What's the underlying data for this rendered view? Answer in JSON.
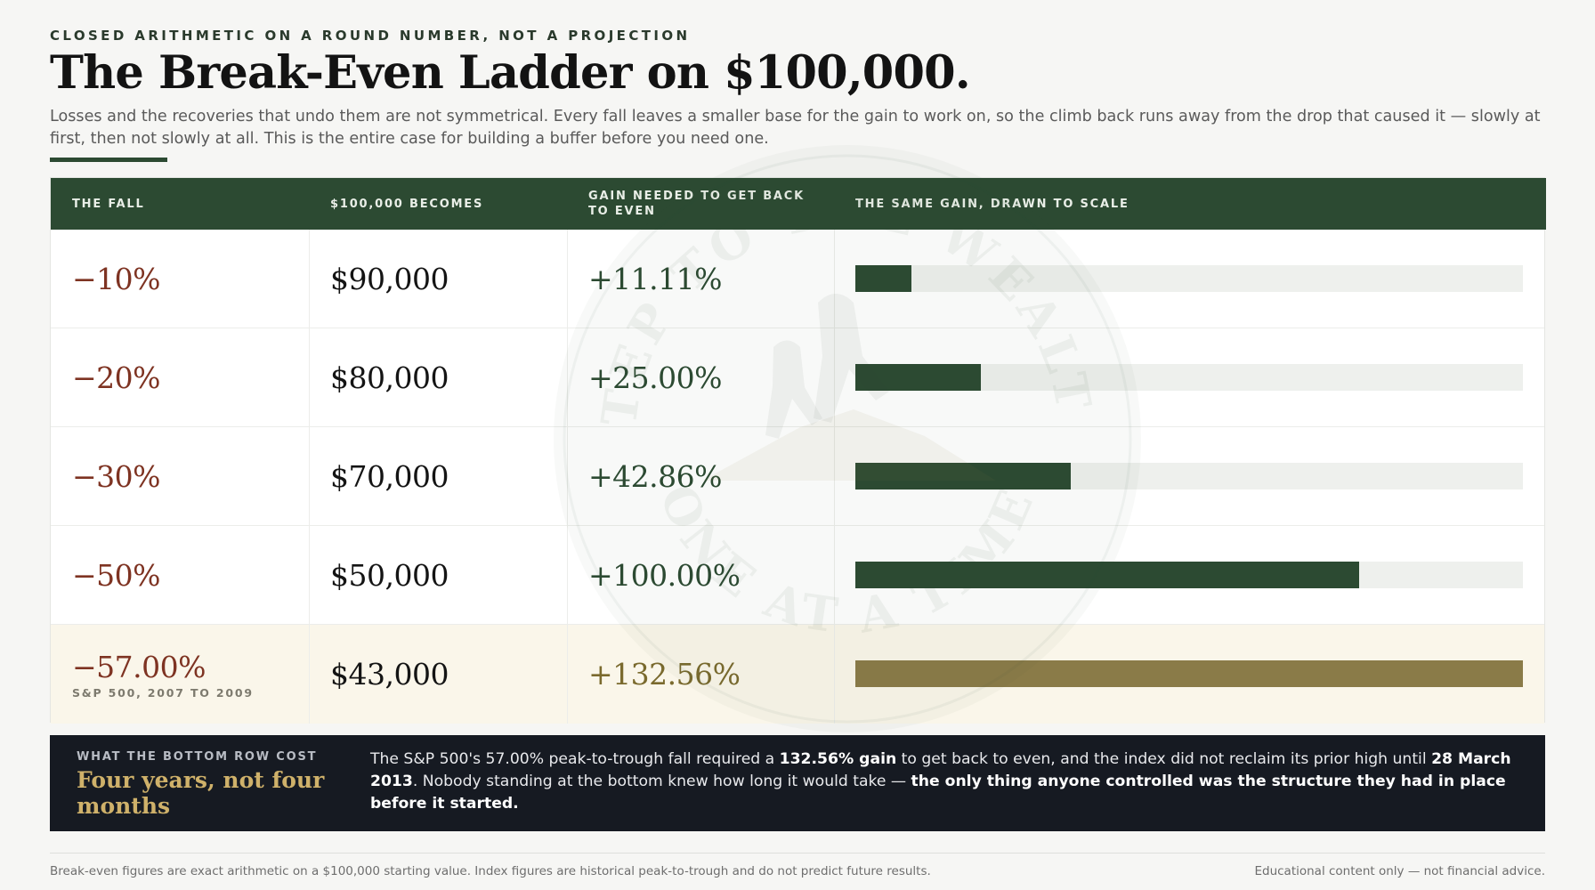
{
  "header": {
    "eyebrow": "CLOSED ARITHMETIC ON A ROUND NUMBER, NOT A PROJECTION",
    "title": "The Break-Even Ladder on $100,000.",
    "lede": "Losses and the recoveries that undo them are not symmetrical. Every fall leaves a smaller base for the gain to work on, so the climb back runs away from the drop that caused it — slowly at first, then not slowly at all. This is the entire case for building a buffer before you need one."
  },
  "watermark": {
    "top_text": "STEP TO THE WEALTH",
    "bottom_text": "ONE AT A TIME",
    "icon": "hikers-mountain-seal"
  },
  "colors": {
    "accent": "#2c4a32",
    "loss": "#7e3322",
    "highlight_bar": "#8a7b48",
    "banner_bg": "#161a22",
    "banner_head": "#cfb16a"
  },
  "chart_data": {
    "type": "table",
    "columns": [
      "THE FALL",
      "$100,000 BECOMES",
      "GAIN NEEDED TO GET BACK TO EVEN",
      "THE SAME GAIN, DRAWN TO SCALE"
    ],
    "rows": [
      {
        "fall": "−10%",
        "becomes": "$90,000",
        "gain": "+11.11%",
        "gain_value": 11.11,
        "note": ""
      },
      {
        "fall": "−20%",
        "becomes": "$80,000",
        "gain": "+25.00%",
        "gain_value": 25.0,
        "note": ""
      },
      {
        "fall": "−30%",
        "becomes": "$70,000",
        "gain": "+42.86%",
        "gain_value": 42.86,
        "note": ""
      },
      {
        "fall": "−50%",
        "becomes": "$50,000",
        "gain": "+100.00%",
        "gain_value": 100.0,
        "note": ""
      },
      {
        "fall": "−57.00%",
        "becomes": "$43,000",
        "gain": "+132.56%",
        "gain_value": 132.56,
        "note": "S&P 500, 2007 TO 2009",
        "highlight": true
      }
    ],
    "bar_max": 132.56
  },
  "banner": {
    "eyebrow": "WHAT THE BOTTOM ROW COST",
    "headline": "Four years, not four months",
    "body_1": "The S&P 500's 57.00% peak-to-trough fall required a ",
    "body_bold_1": "132.56% gain",
    "body_2": " to get back to even, and the index did not reclaim its prior high until ",
    "body_bold_2": "28 March 2013",
    "body_3": ". Nobody standing at the bottom knew how long it would take — ",
    "body_bold_3": "the only thing anyone controlled was the structure they had in place before it started."
  },
  "footer": {
    "left": "Break-even figures are exact arithmetic on a $100,000 starting value. Index figures are historical peak-to-trough and do not predict future results.",
    "right": "Educational content only — not financial advice."
  }
}
